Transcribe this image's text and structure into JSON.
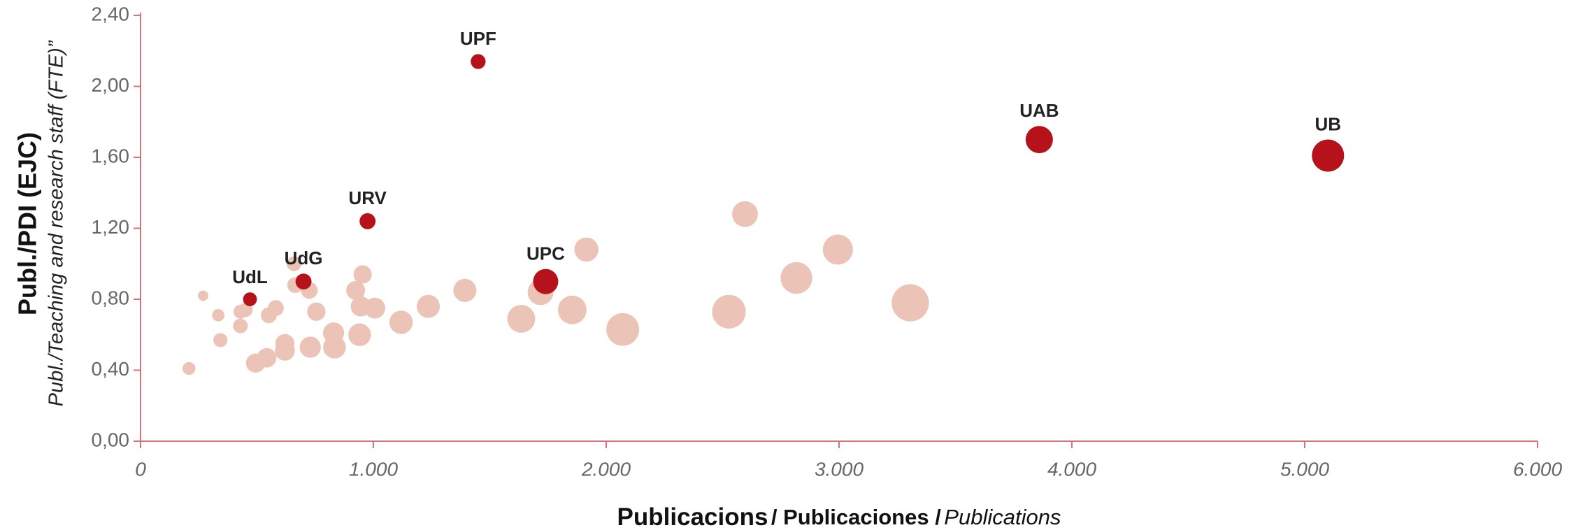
{
  "chart_data": {
    "type": "bubble",
    "y_label": [
      "Publ./PDI (EJC)",
      "Publ./Teaching and research staff (FTE)”"
    ],
    "x_label": [
      "Publicacions",
      "/ Publicaciones /",
      "Publications"
    ],
    "xlim": [
      0,
      6000
    ],
    "xticks": [
      0,
      {
        "value": 1000,
        "label": "1.000"
      },
      {
        "value": 2000,
        "label": "2.000"
      },
      {
        "value": 3000,
        "label": "3.000"
      },
      {
        "value": 4000,
        "label": "4.000"
      },
      {
        "value": 5000,
        "label": "5.000"
      },
      {
        "value": 6000,
        "label": "6.000"
      }
    ],
    "ylim": [
      0,
      2.4
    ],
    "yticks": [
      {
        "value": 0,
        "label": "0,00"
      },
      {
        "value": 0.4,
        "label": "0,40"
      },
      {
        "value": 0.8,
        "label": "0,80"
      },
      {
        "value": 1.2,
        "label": "1,20"
      },
      {
        "value": 1.6,
        "label": "1,60"
      },
      {
        "value": 2.0,
        "label": "2,00"
      },
      {
        "value": 2.4,
        "label": "2,40"
      }
    ],
    "series": [
      {
        "color": "#ecc3b7",
        "x": [
          269,
          334,
          343,
          208,
          429,
          429,
          451,
          581,
          551,
          659,
          664,
          725,
          755,
          620,
          620,
          542,
          494,
          729,
          829,
          833,
          954,
          924,
          946,
          941,
          1006,
          1119,
          1236,
          1393,
          1635,
          1718,
          1854,
          1915,
          2071,
          2527,
          2596,
          2817,
          2995,
          3306
        ],
        "values": [
          0.82,
          0.71,
          0.57,
          0.41,
          0.73,
          0.65,
          0.74,
          0.75,
          0.71,
          1.0,
          0.88,
          0.85,
          0.73,
          0.55,
          0.51,
          0.47,
          0.44,
          0.53,
          0.61,
          0.53,
          0.94,
          0.85,
          0.76,
          0.6,
          0.75,
          0.67,
          0.76,
          0.85,
          0.69,
          0.84,
          0.74,
          1.08,
          0.63,
          0.73,
          1.28,
          0.92,
          1.08,
          0.78
        ],
        "sizes": [
          328,
          470,
          602,
          507,
          588,
          660,
          609,
          775,
          776,
          659,
          755,
          853,
          1034,
          1127,
          1216,
          1153,
          1123,
          1375,
          1359,
          1572,
          1015,
          1087,
          1245,
          1568,
          1341,
          1670,
          1626,
          1639,
          2370,
          2045,
          2505,
          1773,
          3287,
          3462,
          2028,
          3062,
          2773,
          4238
        ]
      },
      {
        "color": "#b5121b",
        "x": [
          1450,
          3860,
          5100,
          975,
          1740,
          700,
          470
        ],
        "values": [
          2.14,
          1.7,
          1.61,
          1.24,
          0.9,
          0.9,
          0.8
        ],
        "sizes": [
          678,
          2271,
          3168,
          786,
          1933,
          778,
          588
        ],
        "labels": [
          "UPF",
          "UAB",
          "UB",
          "URV",
          "UPC",
          "UdG",
          "UdL"
        ]
      }
    ]
  }
}
